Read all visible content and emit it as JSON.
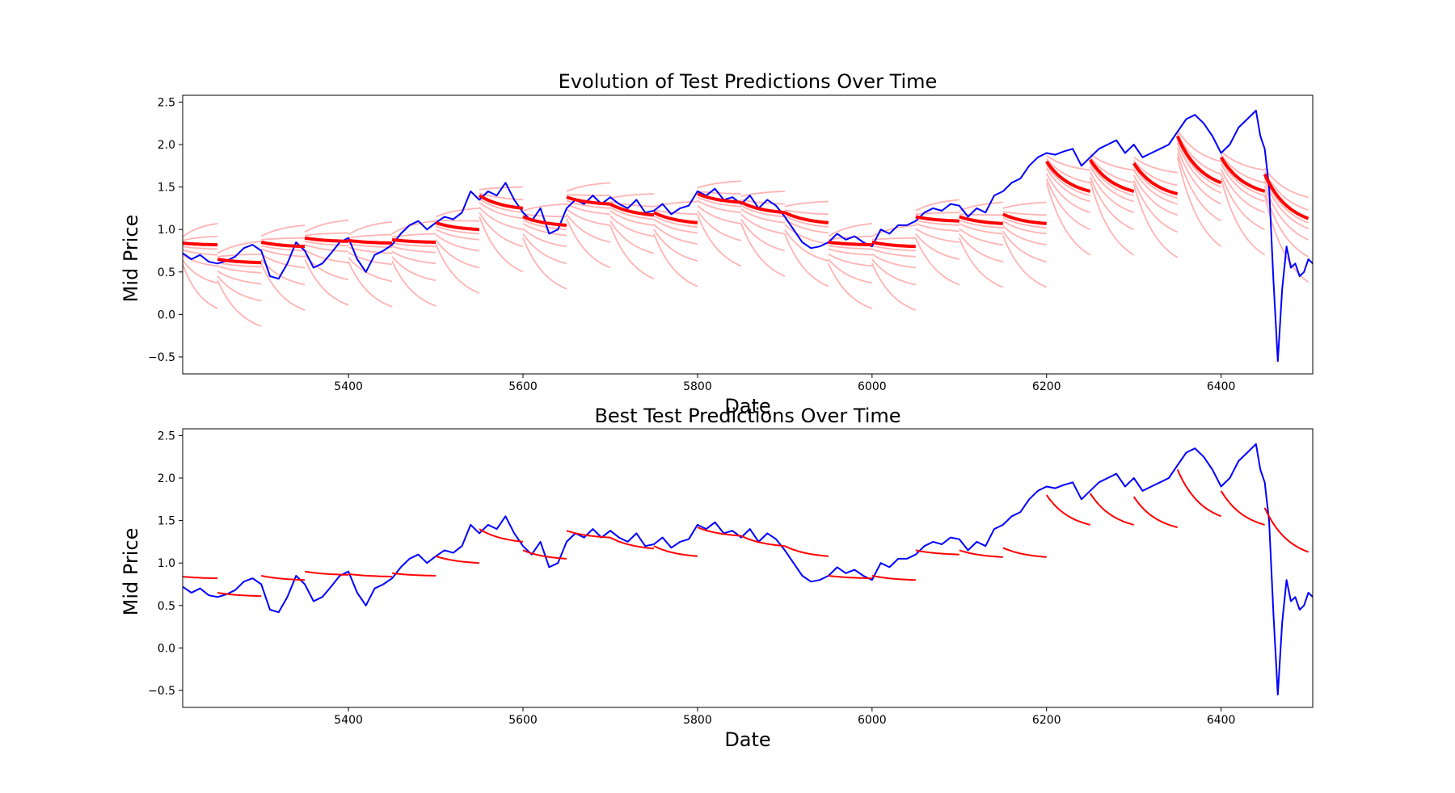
{
  "chart_data": [
    {
      "type": "line",
      "title": "Evolution of Test Predictions Over Time",
      "xlabel": "Date",
      "ylabel": "Mid Price",
      "xlim": [
        5210,
        6505
      ],
      "ylim": [
        -0.7,
        2.58
      ],
      "xticks": [
        5400,
        5600,
        5800,
        6000,
        6200,
        6400
      ],
      "yticks": [
        -0.5,
        0.0,
        0.5,
        1.0,
        1.5,
        2.0,
        2.5
      ],
      "xtick_labels": [
        "5400",
        "5600",
        "5800",
        "6000",
        "6200",
        "6400"
      ],
      "ytick_labels": [
        "−0.5",
        "0.0",
        "0.5",
        "1.0",
        "1.5",
        "2.0",
        "2.5"
      ],
      "grid": false,
      "series": [
        {
          "role": "actual",
          "color": "#0000ff",
          "x": [
            5210,
            5220,
            5230,
            5240,
            5250,
            5260,
            5270,
            5280,
            5290,
            5300,
            5310,
            5320,
            5330,
            5340,
            5350,
            5360,
            5370,
            5380,
            5390,
            5400,
            5410,
            5420,
            5430,
            5440,
            5450,
            5460,
            5470,
            5480,
            5490,
            5500,
            5510,
            5520,
            5530,
            5540,
            5550,
            5560,
            5570,
            5580,
            5590,
            5600,
            5610,
            5620,
            5630,
            5640,
            5650,
            5660,
            5670,
            5680,
            5690,
            5700,
            5710,
            5720,
            5730,
            5740,
            5750,
            5760,
            5770,
            5780,
            5790,
            5800,
            5810,
            5820,
            5830,
            5840,
            5850,
            5860,
            5870,
            5880,
            5890,
            5900,
            5910,
            5920,
            5930,
            5940,
            5950,
            5960,
            5970,
            5980,
            5990,
            6000,
            6010,
            6020,
            6030,
            6040,
            6050,
            6060,
            6070,
            6080,
            6090,
            6100,
            6110,
            6120,
            6130,
            6140,
            6150,
            6160,
            6170,
            6180,
            6190,
            6200,
            6210,
            6220,
            6230,
            6240,
            6250,
            6260,
            6270,
            6280,
            6290,
            6300,
            6310,
            6320,
            6330,
            6340,
            6350,
            6360,
            6370,
            6380,
            6390,
            6400,
            6410,
            6420,
            6430,
            6440,
            6445,
            6450,
            6455,
            6460,
            6465,
            6470,
            6475,
            6480,
            6485,
            6490,
            6495,
            6500,
            6505
          ],
          "y": [
            0.72,
            0.65,
            0.7,
            0.62,
            0.6,
            0.63,
            0.68,
            0.78,
            0.82,
            0.75,
            0.45,
            0.42,
            0.6,
            0.85,
            0.75,
            0.55,
            0.6,
            0.72,
            0.85,
            0.9,
            0.65,
            0.5,
            0.7,
            0.75,
            0.82,
            0.95,
            1.05,
            1.1,
            1.0,
            1.08,
            1.15,
            1.12,
            1.2,
            1.45,
            1.35,
            1.45,
            1.4,
            1.55,
            1.35,
            1.2,
            1.1,
            1.25,
            0.95,
            1.0,
            1.25,
            1.35,
            1.3,
            1.4,
            1.3,
            1.38,
            1.3,
            1.25,
            1.35,
            1.2,
            1.22,
            1.3,
            1.18,
            1.25,
            1.28,
            1.45,
            1.4,
            1.48,
            1.35,
            1.38,
            1.3,
            1.4,
            1.25,
            1.35,
            1.28,
            1.15,
            1.0,
            0.85,
            0.78,
            0.8,
            0.85,
            0.95,
            0.88,
            0.92,
            0.85,
            0.8,
            1.0,
            0.95,
            1.05,
            1.05,
            1.1,
            1.2,
            1.25,
            1.22,
            1.3,
            1.28,
            1.15,
            1.25,
            1.2,
            1.4,
            1.45,
            1.55,
            1.6,
            1.75,
            1.85,
            1.9,
            1.88,
            1.92,
            1.95,
            1.75,
            1.85,
            1.95,
            2.0,
            2.05,
            1.9,
            2.0,
            1.85,
            1.9,
            1.95,
            2.0,
            2.15,
            2.3,
            2.35,
            2.25,
            2.1,
            1.9,
            2.0,
            2.2,
            2.3,
            2.4,
            2.1,
            1.95,
            1.5,
            0.4,
            -0.55,
            0.3,
            0.8,
            0.55,
            0.6,
            0.45,
            0.5,
            0.65,
            0.6
          ]
        }
      ],
      "prediction_segments": [
        {
          "x0": 5210,
          "x1": 5250,
          "final_start": 0.84,
          "final_end": 0.82
        },
        {
          "x0": 5250,
          "x1": 5300,
          "final_start": 0.65,
          "final_end": 0.61
        },
        {
          "x0": 5300,
          "x1": 5350,
          "final_start": 0.85,
          "final_end": 0.8
        },
        {
          "x0": 5350,
          "x1": 5400,
          "final_start": 0.9,
          "final_end": 0.86
        },
        {
          "x0": 5400,
          "x1": 5450,
          "final_start": 0.87,
          "final_end": 0.84
        },
        {
          "x0": 5450,
          "x1": 5500,
          "final_start": 0.88,
          "final_end": 0.85
        },
        {
          "x0": 5500,
          "x1": 5550,
          "final_start": 1.08,
          "final_end": 1.0
        },
        {
          "x0": 5550,
          "x1": 5600,
          "final_start": 1.4,
          "final_end": 1.25
        },
        {
          "x0": 5600,
          "x1": 5650,
          "final_start": 1.15,
          "final_end": 1.05
        },
        {
          "x0": 5650,
          "x1": 5700,
          "final_start": 1.38,
          "final_end": 1.3
        },
        {
          "x0": 5700,
          "x1": 5750,
          "final_start": 1.3,
          "final_end": 1.17
        },
        {
          "x0": 5750,
          "x1": 5800,
          "final_start": 1.2,
          "final_end": 1.08
        },
        {
          "x0": 5800,
          "x1": 5850,
          "final_start": 1.42,
          "final_end": 1.32
        },
        {
          "x0": 5850,
          "x1": 5900,
          "final_start": 1.32,
          "final_end": 1.2
        },
        {
          "x0": 5900,
          "x1": 5950,
          "final_start": 1.2,
          "final_end": 1.08
        },
        {
          "x0": 5950,
          "x1": 6000,
          "final_start": 0.85,
          "final_end": 0.82
        },
        {
          "x0": 6000,
          "x1": 6050,
          "final_start": 0.85,
          "final_end": 0.8
        },
        {
          "x0": 6050,
          "x1": 6100,
          "final_start": 1.15,
          "final_end": 1.1
        },
        {
          "x0": 6100,
          "x1": 6150,
          "final_start": 1.15,
          "final_end": 1.07
        },
        {
          "x0": 6150,
          "x1": 6200,
          "final_start": 1.18,
          "final_end": 1.07
        },
        {
          "x0": 6200,
          "x1": 6250,
          "final_start": 1.8,
          "final_end": 1.45
        },
        {
          "x0": 6250,
          "x1": 6300,
          "final_start": 1.82,
          "final_end": 1.45
        },
        {
          "x0": 6300,
          "x1": 6350,
          "final_start": 1.78,
          "final_end": 1.42
        },
        {
          "x0": 6350,
          "x1": 6400,
          "final_start": 2.1,
          "final_end": 1.55
        },
        {
          "x0": 6400,
          "x1": 6450,
          "final_start": 1.85,
          "final_end": 1.45
        },
        {
          "x0": 6450,
          "x1": 6500,
          "final_start": 1.65,
          "final_end": 1.13
        }
      ]
    },
    {
      "type": "line",
      "title": "Best Test Predictions Over Time",
      "xlabel": "Date",
      "ylabel": "Mid Price",
      "xlim": [
        5210,
        6505
      ],
      "ylim": [
        -0.7,
        2.58
      ],
      "xticks": [
        5400,
        5600,
        5800,
        6000,
        6200,
        6400
      ],
      "yticks": [
        -0.5,
        0.0,
        0.5,
        1.0,
        1.5,
        2.0,
        2.5
      ],
      "xtick_labels": [
        "5400",
        "5600",
        "5800",
        "6000",
        "6200",
        "6400"
      ],
      "ytick_labels": [
        "−0.5",
        "0.0",
        "0.5",
        "1.0",
        "1.5",
        "2.0",
        "2.5"
      ],
      "grid": false,
      "series": [
        {
          "role": "actual",
          "color": "#0000ff",
          "x": [
            5210,
            5220,
            5230,
            5240,
            5250,
            5260,
            5270,
            5280,
            5290,
            5300,
            5310,
            5320,
            5330,
            5340,
            5350,
            5360,
            5370,
            5380,
            5390,
            5400,
            5410,
            5420,
            5430,
            5440,
            5450,
            5460,
            5470,
            5480,
            5490,
            5500,
            5510,
            5520,
            5530,
            5540,
            5550,
            5560,
            5570,
            5580,
            5590,
            5600,
            5610,
            5620,
            5630,
            5640,
            5650,
            5660,
            5670,
            5680,
            5690,
            5700,
            5710,
            5720,
            5730,
            5740,
            5750,
            5760,
            5770,
            5780,
            5790,
            5800,
            5810,
            5820,
            5830,
            5840,
            5850,
            5860,
            5870,
            5880,
            5890,
            5900,
            5910,
            5920,
            5930,
            5940,
            5950,
            5960,
            5970,
            5980,
            5990,
            6000,
            6010,
            6020,
            6030,
            6040,
            6050,
            6060,
            6070,
            6080,
            6090,
            6100,
            6110,
            6120,
            6130,
            6140,
            6150,
            6160,
            6170,
            6180,
            6190,
            6200,
            6210,
            6220,
            6230,
            6240,
            6250,
            6260,
            6270,
            6280,
            6290,
            6300,
            6310,
            6320,
            6330,
            6340,
            6350,
            6360,
            6370,
            6380,
            6390,
            6400,
            6410,
            6420,
            6430,
            6440,
            6445,
            6450,
            6455,
            6460,
            6465,
            6470,
            6475,
            6480,
            6485,
            6490,
            6495,
            6500,
            6505
          ],
          "y": [
            0.72,
            0.65,
            0.7,
            0.62,
            0.6,
            0.63,
            0.68,
            0.78,
            0.82,
            0.75,
            0.45,
            0.42,
            0.6,
            0.85,
            0.75,
            0.55,
            0.6,
            0.72,
            0.85,
            0.9,
            0.65,
            0.5,
            0.7,
            0.75,
            0.82,
            0.95,
            1.05,
            1.1,
            1.0,
            1.08,
            1.15,
            1.12,
            1.2,
            1.45,
            1.35,
            1.45,
            1.4,
            1.55,
            1.35,
            1.2,
            1.1,
            1.25,
            0.95,
            1.0,
            1.25,
            1.35,
            1.3,
            1.4,
            1.3,
            1.38,
            1.3,
            1.25,
            1.35,
            1.2,
            1.22,
            1.3,
            1.18,
            1.25,
            1.28,
            1.45,
            1.4,
            1.48,
            1.35,
            1.38,
            1.3,
            1.4,
            1.25,
            1.35,
            1.28,
            1.15,
            1.0,
            0.85,
            0.78,
            0.8,
            0.85,
            0.95,
            0.88,
            0.92,
            0.85,
            0.8,
            1.0,
            0.95,
            1.05,
            1.05,
            1.1,
            1.2,
            1.25,
            1.22,
            1.3,
            1.28,
            1.15,
            1.25,
            1.2,
            1.4,
            1.45,
            1.55,
            1.6,
            1.75,
            1.85,
            1.9,
            1.88,
            1.92,
            1.95,
            1.75,
            1.85,
            1.95,
            2.0,
            2.05,
            1.9,
            2.0,
            1.85,
            1.9,
            1.95,
            2.0,
            2.15,
            2.3,
            2.35,
            2.25,
            2.1,
            1.9,
            2.0,
            2.2,
            2.3,
            2.4,
            2.1,
            1.95,
            1.5,
            0.4,
            -0.55,
            0.3,
            0.8,
            0.55,
            0.6,
            0.45,
            0.5,
            0.65,
            0.6
          ]
        }
      ],
      "prediction_segments": [
        {
          "x0": 5210,
          "x1": 5250,
          "final_start": 0.84,
          "final_end": 0.82
        },
        {
          "x0": 5250,
          "x1": 5300,
          "final_start": 0.65,
          "final_end": 0.61
        },
        {
          "x0": 5300,
          "x1": 5350,
          "final_start": 0.85,
          "final_end": 0.8
        },
        {
          "x0": 5350,
          "x1": 5400,
          "final_start": 0.9,
          "final_end": 0.86
        },
        {
          "x0": 5400,
          "x1": 5450,
          "final_start": 0.87,
          "final_end": 0.84
        },
        {
          "x0": 5450,
          "x1": 5500,
          "final_start": 0.88,
          "final_end": 0.85
        },
        {
          "x0": 5500,
          "x1": 5550,
          "final_start": 1.08,
          "final_end": 1.0
        },
        {
          "x0": 5550,
          "x1": 5600,
          "final_start": 1.4,
          "final_end": 1.25
        },
        {
          "x0": 5600,
          "x1": 5650,
          "final_start": 1.15,
          "final_end": 1.05
        },
        {
          "x0": 5650,
          "x1": 5700,
          "final_start": 1.38,
          "final_end": 1.3
        },
        {
          "x0": 5700,
          "x1": 5750,
          "final_start": 1.3,
          "final_end": 1.17
        },
        {
          "x0": 5750,
          "x1": 5800,
          "final_start": 1.2,
          "final_end": 1.08
        },
        {
          "x0": 5800,
          "x1": 5850,
          "final_start": 1.42,
          "final_end": 1.32
        },
        {
          "x0": 5850,
          "x1": 5900,
          "final_start": 1.32,
          "final_end": 1.2
        },
        {
          "x0": 5900,
          "x1": 5950,
          "final_start": 1.2,
          "final_end": 1.08
        },
        {
          "x0": 5950,
          "x1": 6000,
          "final_start": 0.85,
          "final_end": 0.82
        },
        {
          "x0": 6000,
          "x1": 6050,
          "final_start": 0.85,
          "final_end": 0.8
        },
        {
          "x0": 6050,
          "x1": 6100,
          "final_start": 1.15,
          "final_end": 1.1
        },
        {
          "x0": 6100,
          "x1": 6150,
          "final_start": 1.15,
          "final_end": 1.07
        },
        {
          "x0": 6150,
          "x1": 6200,
          "final_start": 1.18,
          "final_end": 1.07
        },
        {
          "x0": 6200,
          "x1": 6250,
          "final_start": 1.8,
          "final_end": 1.45
        },
        {
          "x0": 6250,
          "x1": 6300,
          "final_start": 1.82,
          "final_end": 1.45
        },
        {
          "x0": 6300,
          "x1": 6350,
          "final_start": 1.78,
          "final_end": 1.42
        },
        {
          "x0": 6350,
          "x1": 6400,
          "final_start": 2.1,
          "final_end": 1.55
        },
        {
          "x0": 6400,
          "x1": 6450,
          "final_start": 1.85,
          "final_end": 1.45
        },
        {
          "x0": 6450,
          "x1": 6500,
          "final_start": 1.65,
          "final_end": 1.13
        }
      ]
    }
  ],
  "colors": {
    "actual": "#0000ff",
    "prediction": "#ff0000",
    "faded_prediction": "#ff8080"
  }
}
